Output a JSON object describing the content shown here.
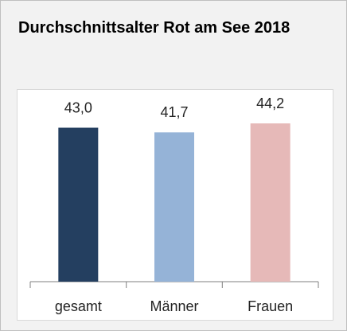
{
  "chart_data": {
    "type": "bar",
    "title": "Durchschnittsalter Rot am See 2018",
    "categories": [
      "gesamt",
      "Männer",
      "Frauen"
    ],
    "values": [
      43.0,
      41.7,
      44.2
    ],
    "value_labels": [
      "43,0",
      "41,7",
      "44,2"
    ],
    "colors": [
      "#243f60",
      "#95b3d7",
      "#e6b9b8"
    ],
    "ylim": [
      0,
      50
    ]
  }
}
